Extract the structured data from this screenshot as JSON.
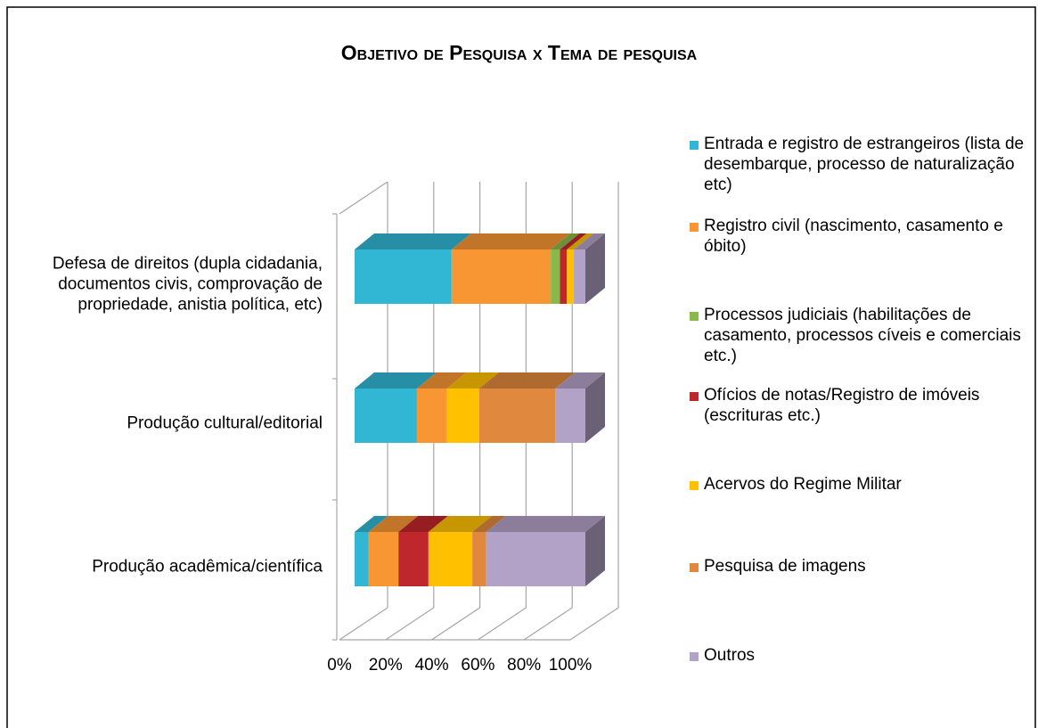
{
  "chart_data": {
    "type": "bar3d_stacked_percent_horizontal",
    "title": "Objetivo de Pesquisa x Tema de pesquisa",
    "categories": [
      "Defesa de direitos (dupla cidadania, documentos civis, comprovação de propriedade, anistia política, etc)",
      "Produção cultural/editorial",
      "Produção acadêmica/científica"
    ],
    "series": [
      {
        "name": "Entrada e registro de estrangeiros (lista de desembarque, processo de naturalização etc)",
        "color": "#31b6d3",
        "values": [
          42,
          27,
          6
        ]
      },
      {
        "name": "Registro civil (nascimento, casamento e óbito)",
        "color": "#f79633",
        "values": [
          43,
          13,
          13
        ]
      },
      {
        "name": "Processos judiciais (habilitações de casamento, processos cíveis e comerciais etc.)",
        "color": "#8ab84a",
        "values": [
          4,
          0,
          0
        ]
      },
      {
        "name": "Ofícios de notas/Registro de imóveis (escrituras etc.)",
        "color": "#c0272d",
        "values": [
          3,
          0,
          13
        ]
      },
      {
        "name": "Acervos do Regime Militar",
        "color": "#ffc000",
        "values": [
          3,
          14,
          19
        ]
      },
      {
        "name": "Pesquisa de imagens",
        "color": "#e0883e",
        "values": [
          0,
          33,
          6
        ]
      },
      {
        "name": "Outros",
        "color": "#b3a2c7",
        "values": [
          5,
          13,
          43
        ]
      }
    ],
    "xlim": [
      0,
      100
    ],
    "xticks": [
      {
        "value": 0,
        "label": "0%"
      },
      {
        "value": 20,
        "label": "20%"
      },
      {
        "value": 40,
        "label": "40%"
      },
      {
        "value": 60,
        "label": "60%"
      },
      {
        "value": 80,
        "label": "80%"
      },
      {
        "value": 100,
        "label": "100%"
      }
    ],
    "grid": true,
    "legend": "right"
  }
}
